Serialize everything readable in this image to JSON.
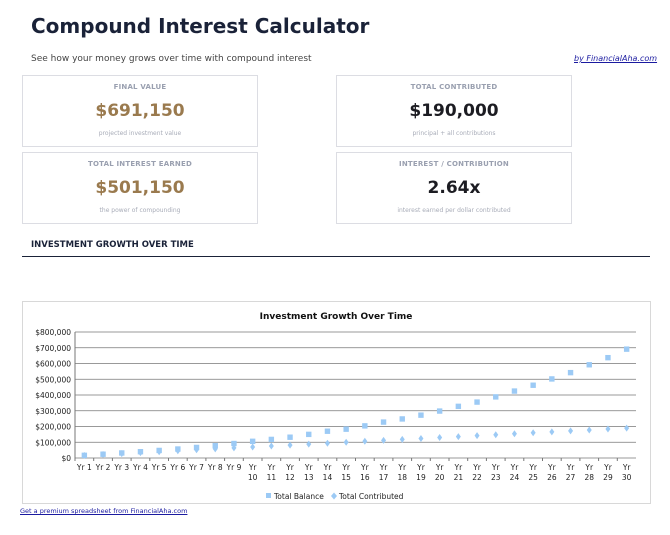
{
  "header": {
    "title": "Compound Interest Calculator",
    "subtitle": "See how your money grows over time with compound interest",
    "byline": "by FinancialAha.com"
  },
  "cards": [
    {
      "label": "FINAL VALUE",
      "value": "$691,150",
      "note": "projected investment value",
      "color": "#9a7a4e"
    },
    {
      "label": "TOTAL CONTRIBUTED",
      "value": "$190,000",
      "note": "principal + all contributions",
      "color": "#1c1c22"
    },
    {
      "label": "TOTAL INTEREST EARNED",
      "value": "$501,150",
      "note": "the power of compounding",
      "color": "#9a7a4e"
    },
    {
      "label": "INTEREST / CONTRIBUTION",
      "value": "2.64x",
      "note": "interest earned per dollar contributed",
      "color": "#1c1c22"
    }
  ],
  "section_title": "INVESTMENT GROWTH OVER TIME",
  "footer_link": "Get a premium spreadsheet from FinancialAha.com",
  "chart_data": {
    "type": "scatter",
    "title": "Investment Growth Over Time",
    "categories": [
      "Yr 1",
      "Yr 2",
      "Yr 3",
      "Yr 4",
      "Yr 5",
      "Yr 6",
      "Yr 7",
      "Yr 8",
      "Yr 9",
      "Yr 10",
      "Yr 11",
      "Yr 12",
      "Yr 13",
      "Yr 14",
      "Yr 15",
      "Yr 16",
      "Yr 17",
      "Yr 18",
      "Yr 19",
      "Yr 20",
      "Yr 21",
      "Yr 22",
      "Yr 23",
      "Yr 24",
      "Yr 25",
      "Yr 26",
      "Yr 27",
      "Yr 28",
      "Yr 29",
      "Yr 30"
    ],
    "ylim": [
      0,
      800000
    ],
    "yticks": [
      "$0",
      "$100,000",
      "$200,000",
      "$300,000",
      "$400,000",
      "$500,000",
      "$600,000",
      "$700,000",
      "$800,000"
    ],
    "grid": true,
    "legend": "bottom",
    "series": [
      {
        "name": "Total Balance",
        "marker": "square",
        "color": "#9ccaf5",
        "values": [
          17000,
          24000,
          32000,
          40000,
          48000,
          57000,
          67000,
          78000,
          92000,
          106000,
          118000,
          132000,
          150000,
          170000,
          183000,
          204000,
          228000,
          248000,
          272000,
          298000,
          328000,
          355000,
          388000,
          425000,
          462000,
          502000,
          542000,
          592000,
          637000,
          691150
        ]
      },
      {
        "name": "Total Contributed",
        "marker": "diamond",
        "color": "#9ccaf5",
        "values": [
          16000,
          22000,
          28000,
          34000,
          40000,
          46000,
          52000,
          58000,
          64000,
          70000,
          76000,
          82000,
          88000,
          94000,
          100000,
          106000,
          112000,
          118000,
          124000,
          130000,
          136000,
          142000,
          148000,
          154000,
          160000,
          166000,
          172000,
          178000,
          184000,
          190000
        ]
      }
    ]
  }
}
